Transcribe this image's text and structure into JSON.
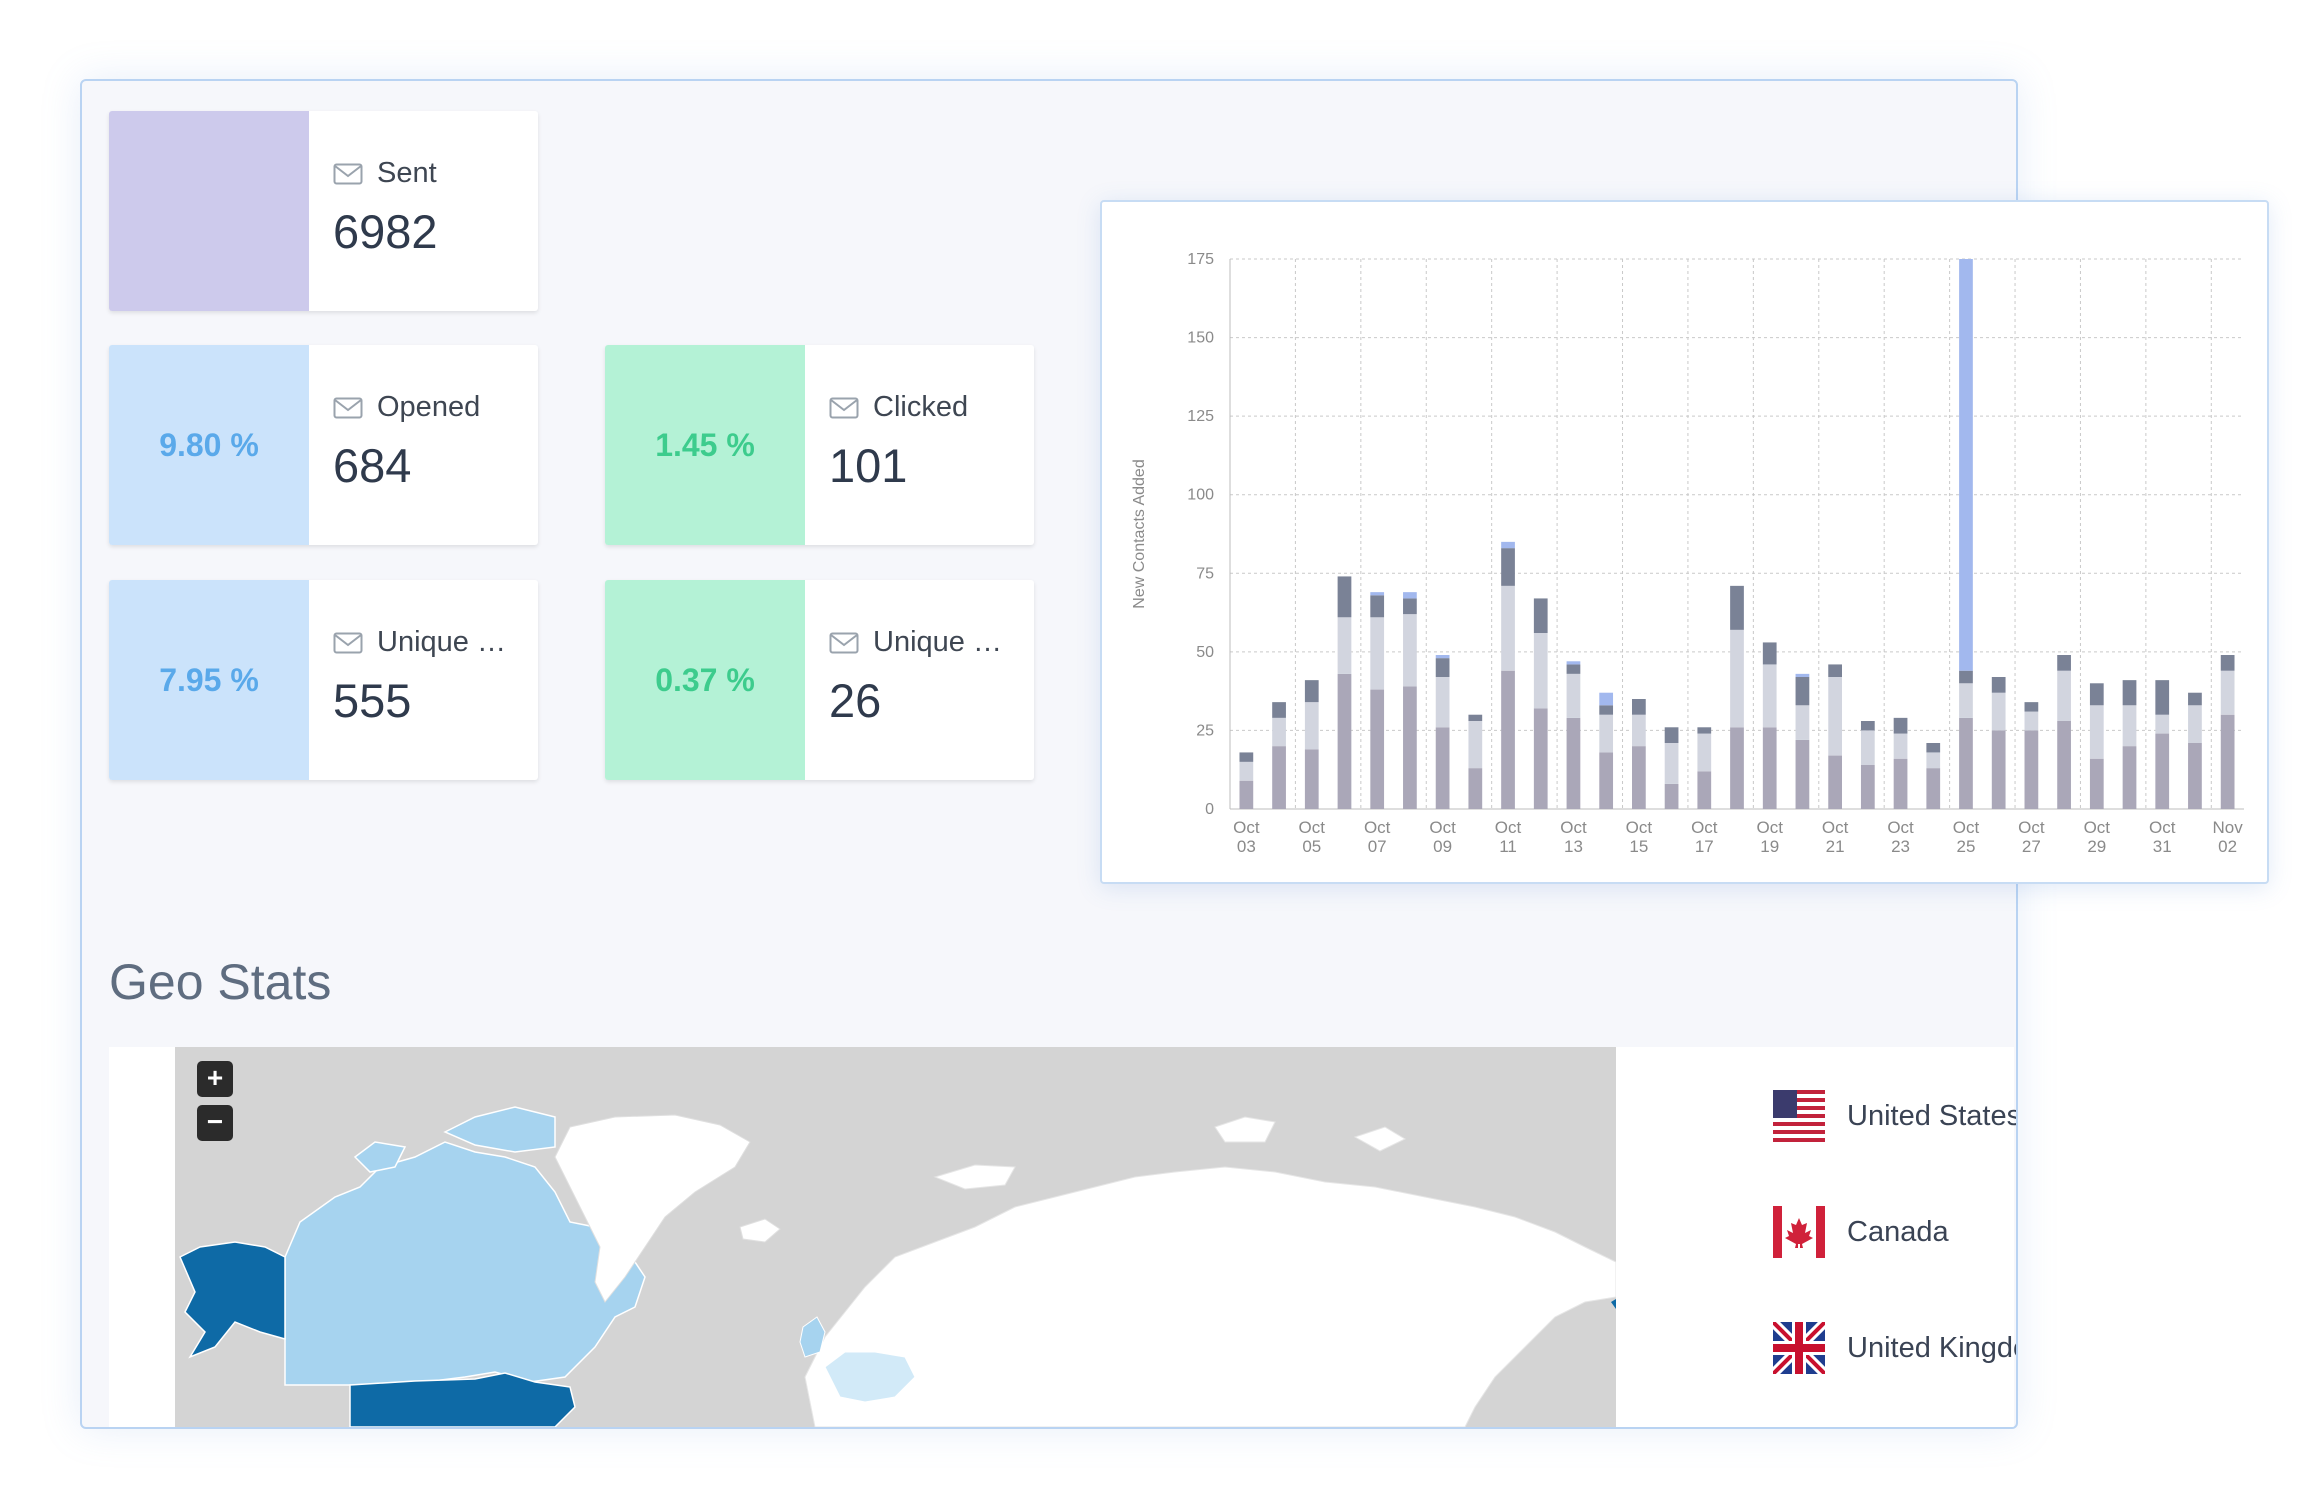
{
  "stats": {
    "sent": {
      "label": "Sent",
      "value": "6982",
      "percent": "",
      "swatch_color": "#cdcaec"
    },
    "opened": {
      "label": "Opened",
      "value": "684",
      "percent": "9.80 %",
      "swatch_color": "#cbe3fb",
      "text_color": "#5aa9ea"
    },
    "clicked": {
      "label": "Clicked",
      "value": "101",
      "percent": "1.45 %",
      "swatch_color": "#b4f2d6",
      "text_color": "#3dcc8d"
    },
    "unique_opened": {
      "label": "Unique Opened",
      "value": "555",
      "percent": "7.95 %",
      "swatch_color": "#cbe3fb",
      "text_color": "#5aa9ea"
    },
    "unique_clicked": {
      "label": "Unique Clicked",
      "value": "26",
      "percent": "0.37 %",
      "swatch_color": "#b4f2d6",
      "text_color": "#3dcc8d"
    }
  },
  "geo": {
    "title": "Geo Stats",
    "zoom_in": "+",
    "zoom_out": "−",
    "countries": [
      {
        "name": "United States",
        "flag": "us-flag-icon"
      },
      {
        "name": "Canada",
        "flag": "canada-flag-icon"
      },
      {
        "name": "United Kingdom",
        "flag": "uk-flag-icon"
      }
    ]
  },
  "chart_data": {
    "type": "bar",
    "stacked": true,
    "ylabel": "New Contacts Added",
    "xlabel": "",
    "ylim": [
      0,
      175
    ],
    "yticks": [
      0,
      25,
      50,
      75,
      100,
      125,
      150,
      175
    ],
    "grid": true,
    "categories": [
      "Oct 03",
      "Oct 04",
      "Oct 05",
      "Oct 06",
      "Oct 07",
      "Oct 08",
      "Oct 09",
      "Oct 10",
      "Oct 11",
      "Oct 12",
      "Oct 13",
      "Oct 14",
      "Oct 15",
      "Oct 16",
      "Oct 17",
      "Oct 18",
      "Oct 19",
      "Oct 20",
      "Oct 21",
      "Oct 22",
      "Oct 23",
      "Oct 24",
      "Oct 25",
      "Oct 26",
      "Oct 27",
      "Oct 28",
      "Oct 29",
      "Oct 30",
      "Oct 31",
      "Nov 01",
      "Nov 02"
    ],
    "tick_labels": [
      [
        "Oct",
        "03"
      ],
      [
        "Oct",
        "05"
      ],
      [
        "Oct",
        "07"
      ],
      [
        "Oct",
        "09"
      ],
      [
        "Oct",
        "11"
      ],
      [
        "Oct",
        "13"
      ],
      [
        "Oct",
        "15"
      ],
      [
        "Oct",
        "17"
      ],
      [
        "Oct",
        "19"
      ],
      [
        "Oct",
        "21"
      ],
      [
        "Oct",
        "23"
      ],
      [
        "Oct",
        "25"
      ],
      [
        "Oct",
        "27"
      ],
      [
        "Oct",
        "29"
      ],
      [
        "Oct",
        "31"
      ],
      [
        "Nov",
        "02"
      ]
    ],
    "series": [
      {
        "color": "#aaa7b8",
        "values": [
          9,
          20,
          19,
          43,
          38,
          39,
          26,
          13,
          44,
          32,
          29,
          18,
          20,
          8,
          12,
          26,
          26,
          22,
          17,
          14,
          16,
          13,
          29,
          25,
          25,
          28,
          16,
          20,
          24,
          21,
          30
        ]
      },
      {
        "color": "#d2d5df",
        "values": [
          6,
          9,
          15,
          18,
          23,
          23,
          16,
          15,
          27,
          24,
          14,
          12,
          10,
          13,
          12,
          31,
          20,
          11,
          25,
          11,
          8,
          5,
          11,
          12,
          6,
          16,
          17,
          13,
          6,
          12,
          14
        ]
      },
      {
        "color": "#7a8296",
        "values": [
          3,
          5,
          7,
          13,
          7,
          5,
          6,
          2,
          12,
          11,
          3,
          3,
          5,
          5,
          2,
          14,
          7,
          9,
          4,
          3,
          5,
          3,
          4,
          5,
          3,
          5,
          7,
          8,
          11,
          4,
          5
        ]
      },
      {
        "color": "#a2b8ee",
        "values": [
          0,
          0,
          0,
          0,
          1,
          2,
          1,
          0,
          2,
          0,
          1,
          4,
          0,
          0,
          0,
          0,
          0,
          1,
          0,
          0,
          0,
          0,
          131,
          0,
          0,
          0,
          0,
          0,
          0,
          0,
          0
        ]
      }
    ]
  }
}
